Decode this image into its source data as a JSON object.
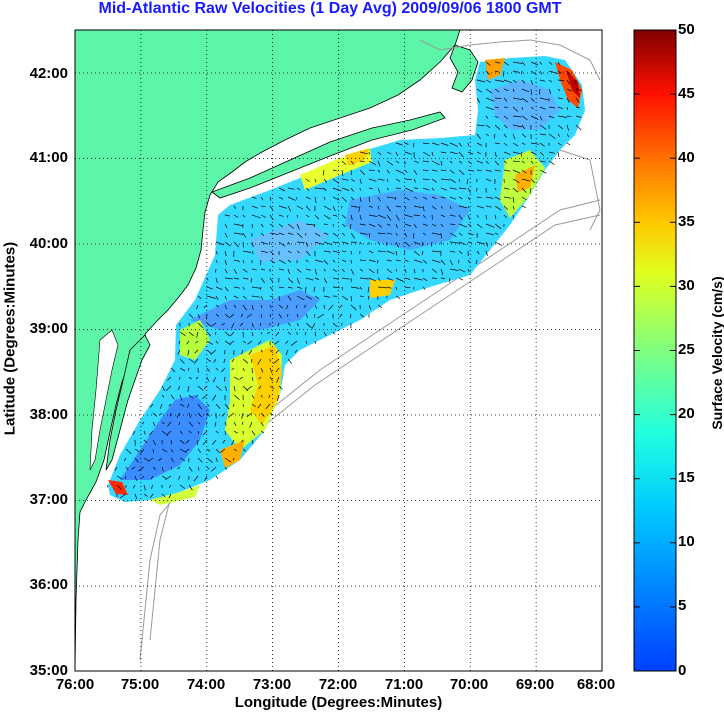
{
  "title": "Mid-Atlantic Raw Velocities (1 Day Avg) 2009/09/06 1800 GMT",
  "xlabel": "Longitude (Degrees:Minutes)",
  "ylabel": "Latitude (Degrees:Minutes)",
  "colorbar_label": "Surface Velocity (cm/s)",
  "x_ticks": [
    "76:00",
    "75:00",
    "74:00",
    "73:00",
    "72:00",
    "71:00",
    "70:00",
    "69:00",
    "68:00"
  ],
  "y_ticks": [
    "42:00",
    "41:00",
    "40:00",
    "39:00",
    "38:00",
    "37:00",
    "36:00",
    "35:00"
  ],
  "colorbar_ticks": [
    "50",
    "45",
    "40",
    "35",
    "30",
    "25",
    "20",
    "15",
    "10",
    "5",
    "0"
  ],
  "colors": {
    "land": "#5df5a8",
    "ocean_gray_bathymetry": "#9a9a9a",
    "title": "#1a1aff"
  },
  "chart_data": {
    "type": "heatmap",
    "title": "Mid-Atlantic Raw Velocities (1 Day Avg) 2009/09/06 1800 GMT",
    "xlabel": "Longitude (Degrees:Minutes)",
    "ylabel": "Latitude (Degrees:Minutes)",
    "xlim": [
      "76:00",
      "68:00"
    ],
    "ylim": [
      "35:00",
      "42:30"
    ],
    "colorbar": {
      "label": "Surface Velocity (cm/s)",
      "range": [
        0,
        50
      ],
      "colormap": "jet"
    },
    "grid": true,
    "legend": "colorbar right"
  }
}
